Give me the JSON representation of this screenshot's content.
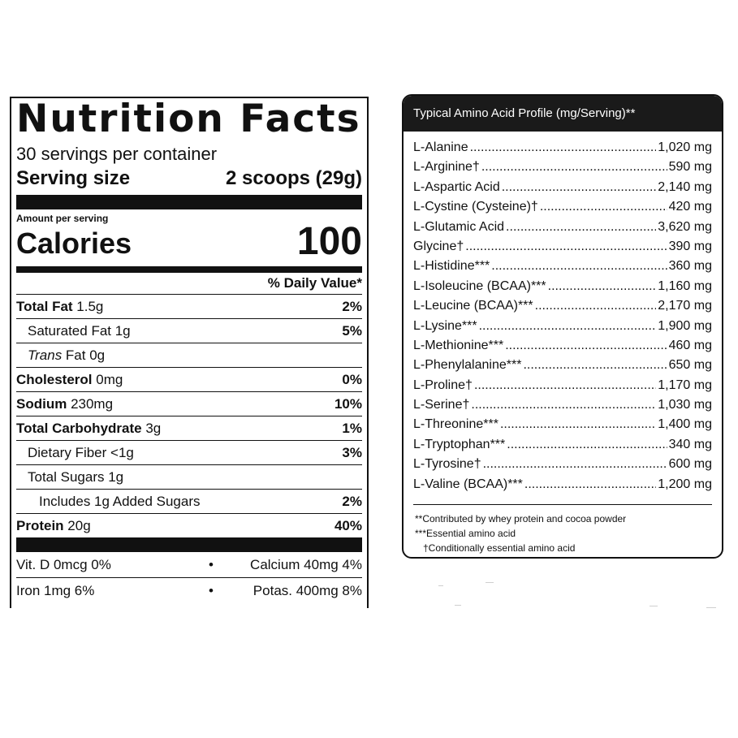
{
  "nutrition": {
    "title": "Nutrition Facts",
    "servings_per_container": "30 servings per container",
    "serving_size_label": "Serving size",
    "serving_size_value": "2 scoops (29g)",
    "amount_per_serving": "Amount per serving",
    "calories_label": "Calories",
    "calories_value": "100",
    "daily_value_header": "% Daily Value*",
    "rows": [
      {
        "bold": "Total Fat",
        "rest": " 1.5g",
        "pct": "2%"
      },
      {
        "bold": "",
        "rest": "Saturated Fat 1g",
        "pct": "5%"
      },
      {
        "italic": "Trans",
        "rest": " Fat 0g",
        "pct": ""
      },
      {
        "bold": "Cholesterol",
        "rest": " 0mg",
        "pct": "0%"
      },
      {
        "bold": "Sodium",
        "rest": " 230mg",
        "pct": "10%"
      },
      {
        "bold": "Total Carbohydrate",
        "rest": " 3g",
        "pct": "1%"
      },
      {
        "bold": "",
        "rest": "Dietary Fiber <1g",
        "pct": "3%"
      },
      {
        "bold": "",
        "rest": "Total Sugars 1g",
        "pct": ""
      },
      {
        "bold": "",
        "rest": "Includes 1g Added Sugars",
        "pct": "2%"
      },
      {
        "bold": "Protein",
        "rest": " 20g",
        "pct": "40%"
      }
    ],
    "vitamins": [
      {
        "left": "Vit. D 0mcg 0%",
        "right": "Calcium 40mg 4%"
      },
      {
        "left": "Iron 1mg 6%",
        "right": "Potas. 400mg 8%"
      }
    ],
    "bullet": "•"
  },
  "amino": {
    "title": "Typical Amino Acid Profile (mg/Serving)**",
    "items": [
      {
        "name": "L-Alanine",
        "amount": "1,020 mg"
      },
      {
        "name": "L-Arginine†",
        "amount": "590 mg"
      },
      {
        "name": "L-Aspartic Acid",
        "amount": "2,140 mg"
      },
      {
        "name": "L-Cystine (Cysteine)†",
        "amount": "420 mg"
      },
      {
        "name": "L-Glutamic Acid",
        "amount": "3,620 mg"
      },
      {
        "name": "Glycine†",
        "amount": "390 mg"
      },
      {
        "name": "L-Histidine***",
        "amount": "360 mg"
      },
      {
        "name": "L-Isoleucine (BCAA)***",
        "amount": "1,160 mg"
      },
      {
        "name": "L-Leucine (BCAA)***",
        "amount": "2,170 mg"
      },
      {
        "name": "L-Lysine***",
        "amount": "1,900 mg"
      },
      {
        "name": "L-Methionine***",
        "amount": "460 mg"
      },
      {
        "name": "L-Phenylalanine***",
        "amount": "650 mg"
      },
      {
        "name": "L-Proline†",
        "amount": "1,170 mg"
      },
      {
        "name": "L-Serine†",
        "amount": "1,030 mg"
      },
      {
        "name": "L-Threonine***",
        "amount": "1,400 mg"
      },
      {
        "name": "L-Tryptophan***",
        "amount": "340 mg"
      },
      {
        "name": "L-Tyrosine†",
        "amount": "600 mg"
      },
      {
        "name": "L-Valine (BCAA)***",
        "amount": "1,200 mg"
      }
    ],
    "notes": [
      "**Contributed by whey protein and cocoa powder",
      "***Essential amino acid",
      "†Conditionally essential amino acid"
    ]
  }
}
